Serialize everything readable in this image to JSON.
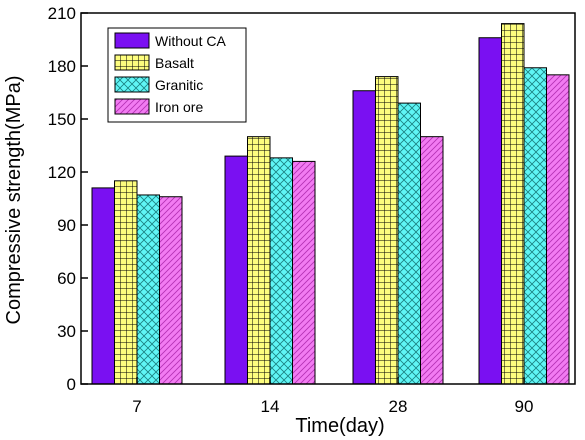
{
  "chart_data": {
    "type": "bar",
    "categories": [
      "7",
      "14",
      "28",
      "90"
    ],
    "series": [
      {
        "name": "Without CA",
        "values": [
          111,
          129,
          166,
          196
        ],
        "color": "#7a10f2",
        "pattern": "solid"
      },
      {
        "name": "Basalt",
        "values": [
          115,
          140,
          174,
          204
        ],
        "color": "#fdfd7e",
        "pattern": "grid"
      },
      {
        "name": "Granitic",
        "values": [
          107,
          128,
          159,
          179
        ],
        "color": "#5ff5f5",
        "pattern": "crosshatch"
      },
      {
        "name": "Iron ore",
        "values": [
          106,
          126,
          140,
          175
        ],
        "color": "#f27bf2",
        "pattern": "diagonal"
      }
    ],
    "yticks": [
      0,
      30,
      60,
      90,
      120,
      150,
      180,
      210
    ],
    "ylim": [
      0,
      210
    ],
    "xlabel": "Time(day)",
    "ylabel": "Compressive strength(MPa)",
    "title": "",
    "legend_position": "top-left"
  }
}
